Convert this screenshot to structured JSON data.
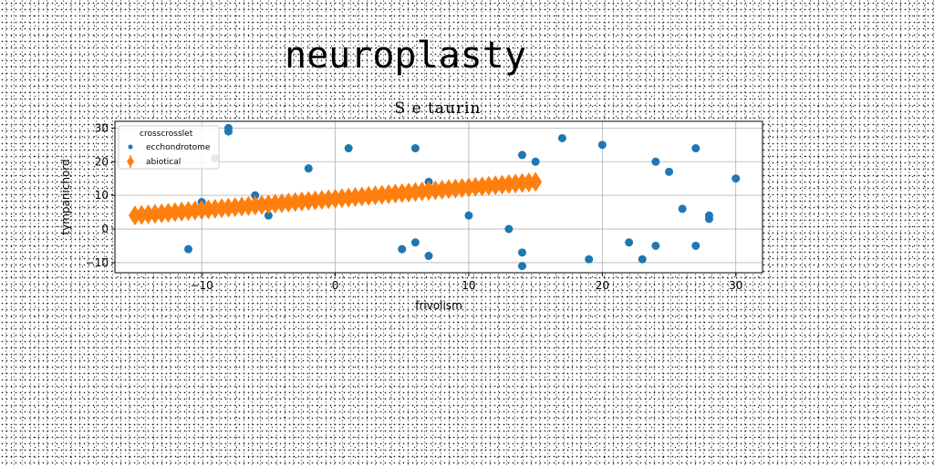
{
  "figure": {
    "title": "neuroplasty"
  },
  "chart_data": {
    "type": "scatter",
    "title": "S e taurin",
    "xlabel": "frivolism",
    "ylabel": "tympanichord",
    "xlim": [
      -16.5,
      32
    ],
    "ylim": [
      -13,
      32
    ],
    "xticks": [
      -10,
      0,
      10,
      20,
      30
    ],
    "yticks": [
      -10,
      0,
      10,
      20,
      30
    ],
    "xtick_labels": [
      "−10",
      "0",
      "10",
      "20",
      "30"
    ],
    "ytick_labels": [
      "−10",
      "0",
      "10",
      "20",
      "30"
    ],
    "grid": true,
    "legend_position": "top-left",
    "legend_title": "crosscrosslet",
    "colors": {
      "ecchondrotome": "#1f77b4",
      "abiotical": "#ff7f0e"
    },
    "series": [
      {
        "name": "ecchondrotome",
        "marker": "circle",
        "points": [
          [
            -8,
            30
          ],
          [
            -8,
            29
          ],
          [
            -9,
            21
          ],
          [
            -10,
            8
          ],
          [
            -11,
            -6
          ],
          [
            -6,
            10
          ],
          [
            -5,
            4
          ],
          [
            -2,
            18
          ],
          [
            1,
            24
          ],
          [
            6,
            24
          ],
          [
            5,
            -6
          ],
          [
            6,
            -4
          ],
          [
            7,
            -8
          ],
          [
            7,
            14
          ],
          [
            10,
            4
          ],
          [
            13,
            0
          ],
          [
            14,
            22
          ],
          [
            14,
            -7
          ],
          [
            14,
            -11
          ],
          [
            15,
            20
          ],
          [
            17,
            27
          ],
          [
            19,
            -9
          ],
          [
            20,
            25
          ],
          [
            22,
            -4
          ],
          [
            23,
            -9
          ],
          [
            24,
            20
          ],
          [
            24,
            -5
          ],
          [
            25,
            17
          ],
          [
            26,
            6
          ],
          [
            27,
            24
          ],
          [
            27,
            -5
          ],
          [
            28,
            4
          ],
          [
            28,
            3
          ],
          [
            30,
            15
          ]
        ]
      },
      {
        "name": "abiotical",
        "marker": "diamond",
        "x_start": -15,
        "x_end": 15,
        "count": 61,
        "y_start": 4,
        "y_end": 14,
        "error_halfwidth": 1.5
      }
    ]
  }
}
